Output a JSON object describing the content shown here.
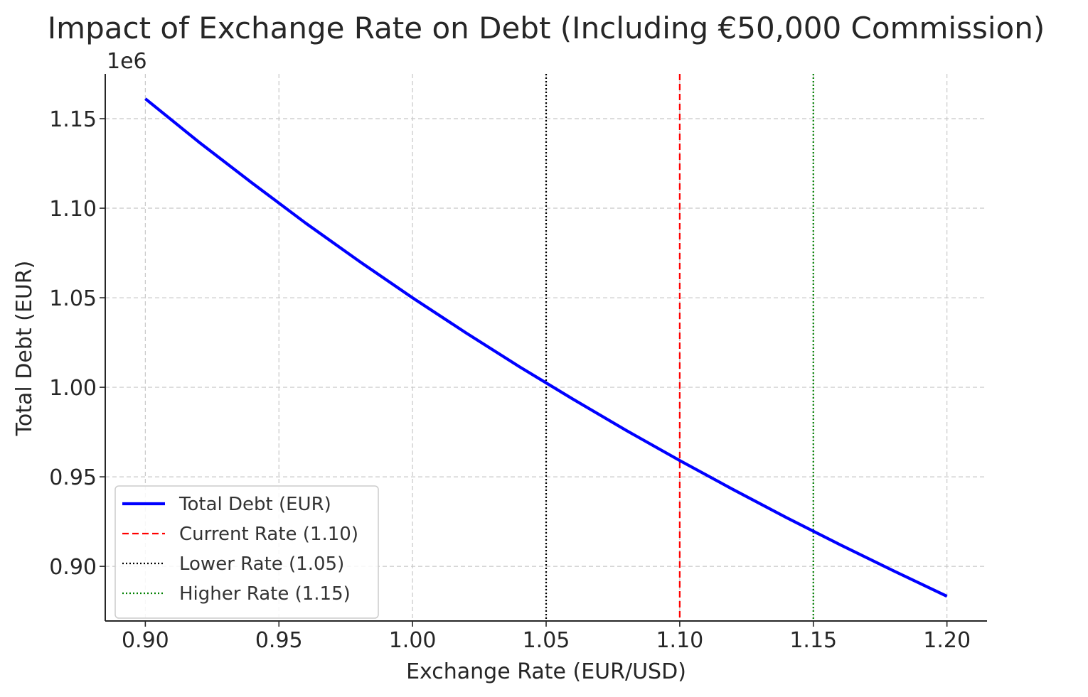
{
  "chart_data": {
    "type": "line",
    "title": "Impact of Exchange Rate on Debt (Including €50,000 Commission)",
    "xlabel": "Exchange Rate (EUR/USD)",
    "ylabel": "Total Debt (EUR)",
    "y_offset_label": "1e6",
    "xlim": [
      0.885,
      1.215
    ],
    "ylim": [
      0.8695,
      1.175
    ],
    "x_ticks": [
      0.9,
      0.95,
      1.0,
      1.05,
      1.1,
      1.15,
      1.2
    ],
    "x_tick_labels": [
      "0.90",
      "0.95",
      "1.00",
      "1.05",
      "1.10",
      "1.15",
      "1.20"
    ],
    "y_ticks": [
      0.9,
      0.95,
      1.0,
      1.05,
      1.1,
      1.15
    ],
    "y_tick_labels": [
      "0.90",
      "0.95",
      "1.00",
      "1.05",
      "1.10",
      "1.15"
    ],
    "grid": true,
    "legend_placement": "lower-left",
    "series": [
      {
        "name": "Total Debt (EUR)",
        "color": "#0000ff",
        "style": "solid",
        "x": [
          0.9,
          0.92,
          0.94,
          0.96,
          0.98,
          1.0,
          1.02,
          1.04,
          1.06,
          1.08,
          1.1,
          1.12,
          1.14,
          1.16,
          1.18,
          1.2
        ],
        "y": [
          1.1611,
          1.137,
          1.114,
          1.0917,
          1.0704,
          1.05,
          1.0304,
          1.0115,
          0.9934,
          0.9759,
          0.9591,
          0.9429,
          0.9272,
          0.9121,
          0.8975,
          0.8833
        ]
      }
    ],
    "vlines": [
      {
        "name": "Current Rate (1.10)",
        "x": 1.1,
        "color": "#ff0000",
        "style": "dashed"
      },
      {
        "name": "Lower Rate (1.05)",
        "x": 1.05,
        "color": "#000000",
        "style": "dotted"
      },
      {
        "name": "Higher Rate (1.15)",
        "x": 1.15,
        "color": "#008000",
        "style": "dotted"
      }
    ]
  }
}
